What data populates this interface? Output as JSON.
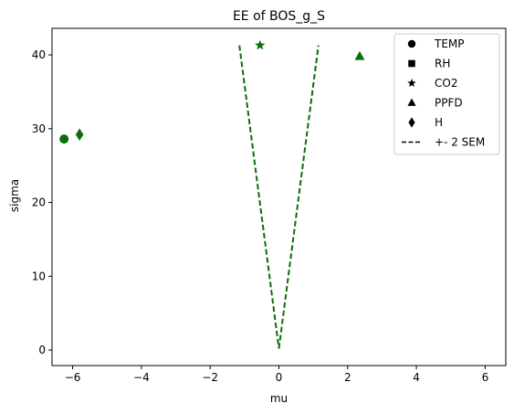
{
  "chart_data": {
    "type": "scatter",
    "title": "EE of BOS_g_S",
    "xlabel": "mu",
    "ylabel": "sigma",
    "xlim": [
      -6.6,
      6.6
    ],
    "ylim": [
      -2.1,
      43.6
    ],
    "xticks": [
      -6,
      -4,
      -2,
      0,
      2,
      4,
      6
    ],
    "xtick_labels": [
      "−6",
      "−4",
      "−2",
      "0",
      "2",
      "4",
      "6"
    ],
    "yticks": [
      0,
      10,
      20,
      30,
      40
    ],
    "ytick_labels": [
      "0",
      "10",
      "20",
      "30",
      "40"
    ],
    "grid": false,
    "legend_position": "top-right",
    "marker_color": "#0a6e0a",
    "line_color": "#0a6e0a",
    "series": [
      {
        "name": "TEMP",
        "marker": "circle",
        "x": -6.25,
        "y": 28.6
      },
      {
        "name": "RH",
        "marker": "square",
        "x": null,
        "y": null
      },
      {
        "name": "CO2",
        "marker": "star",
        "x": -0.55,
        "y": 41.3
      },
      {
        "name": "PPFD",
        "marker": "triangle",
        "x": 2.35,
        "y": 39.8
      },
      {
        "name": "H",
        "marker": "diamond",
        "x": -5.8,
        "y": 29.2
      }
    ],
    "sem_line": {
      "name": "+- 2 SEM",
      "left": [
        [
          -1.15,
          41.3
        ],
        [
          0.0,
          0.2
        ]
      ],
      "right": [
        [
          0.0,
          0.2
        ],
        [
          1.15,
          41.3
        ]
      ]
    },
    "legend": [
      {
        "label": "TEMP",
        "marker": "circle"
      },
      {
        "label": "RH",
        "marker": "square"
      },
      {
        "label": "CO2",
        "marker": "star"
      },
      {
        "label": "PPFD",
        "marker": "triangle"
      },
      {
        "label": "H",
        "marker": "diamond"
      },
      {
        "label": "+- 2 SEM",
        "marker": "dashed-line"
      }
    ]
  }
}
